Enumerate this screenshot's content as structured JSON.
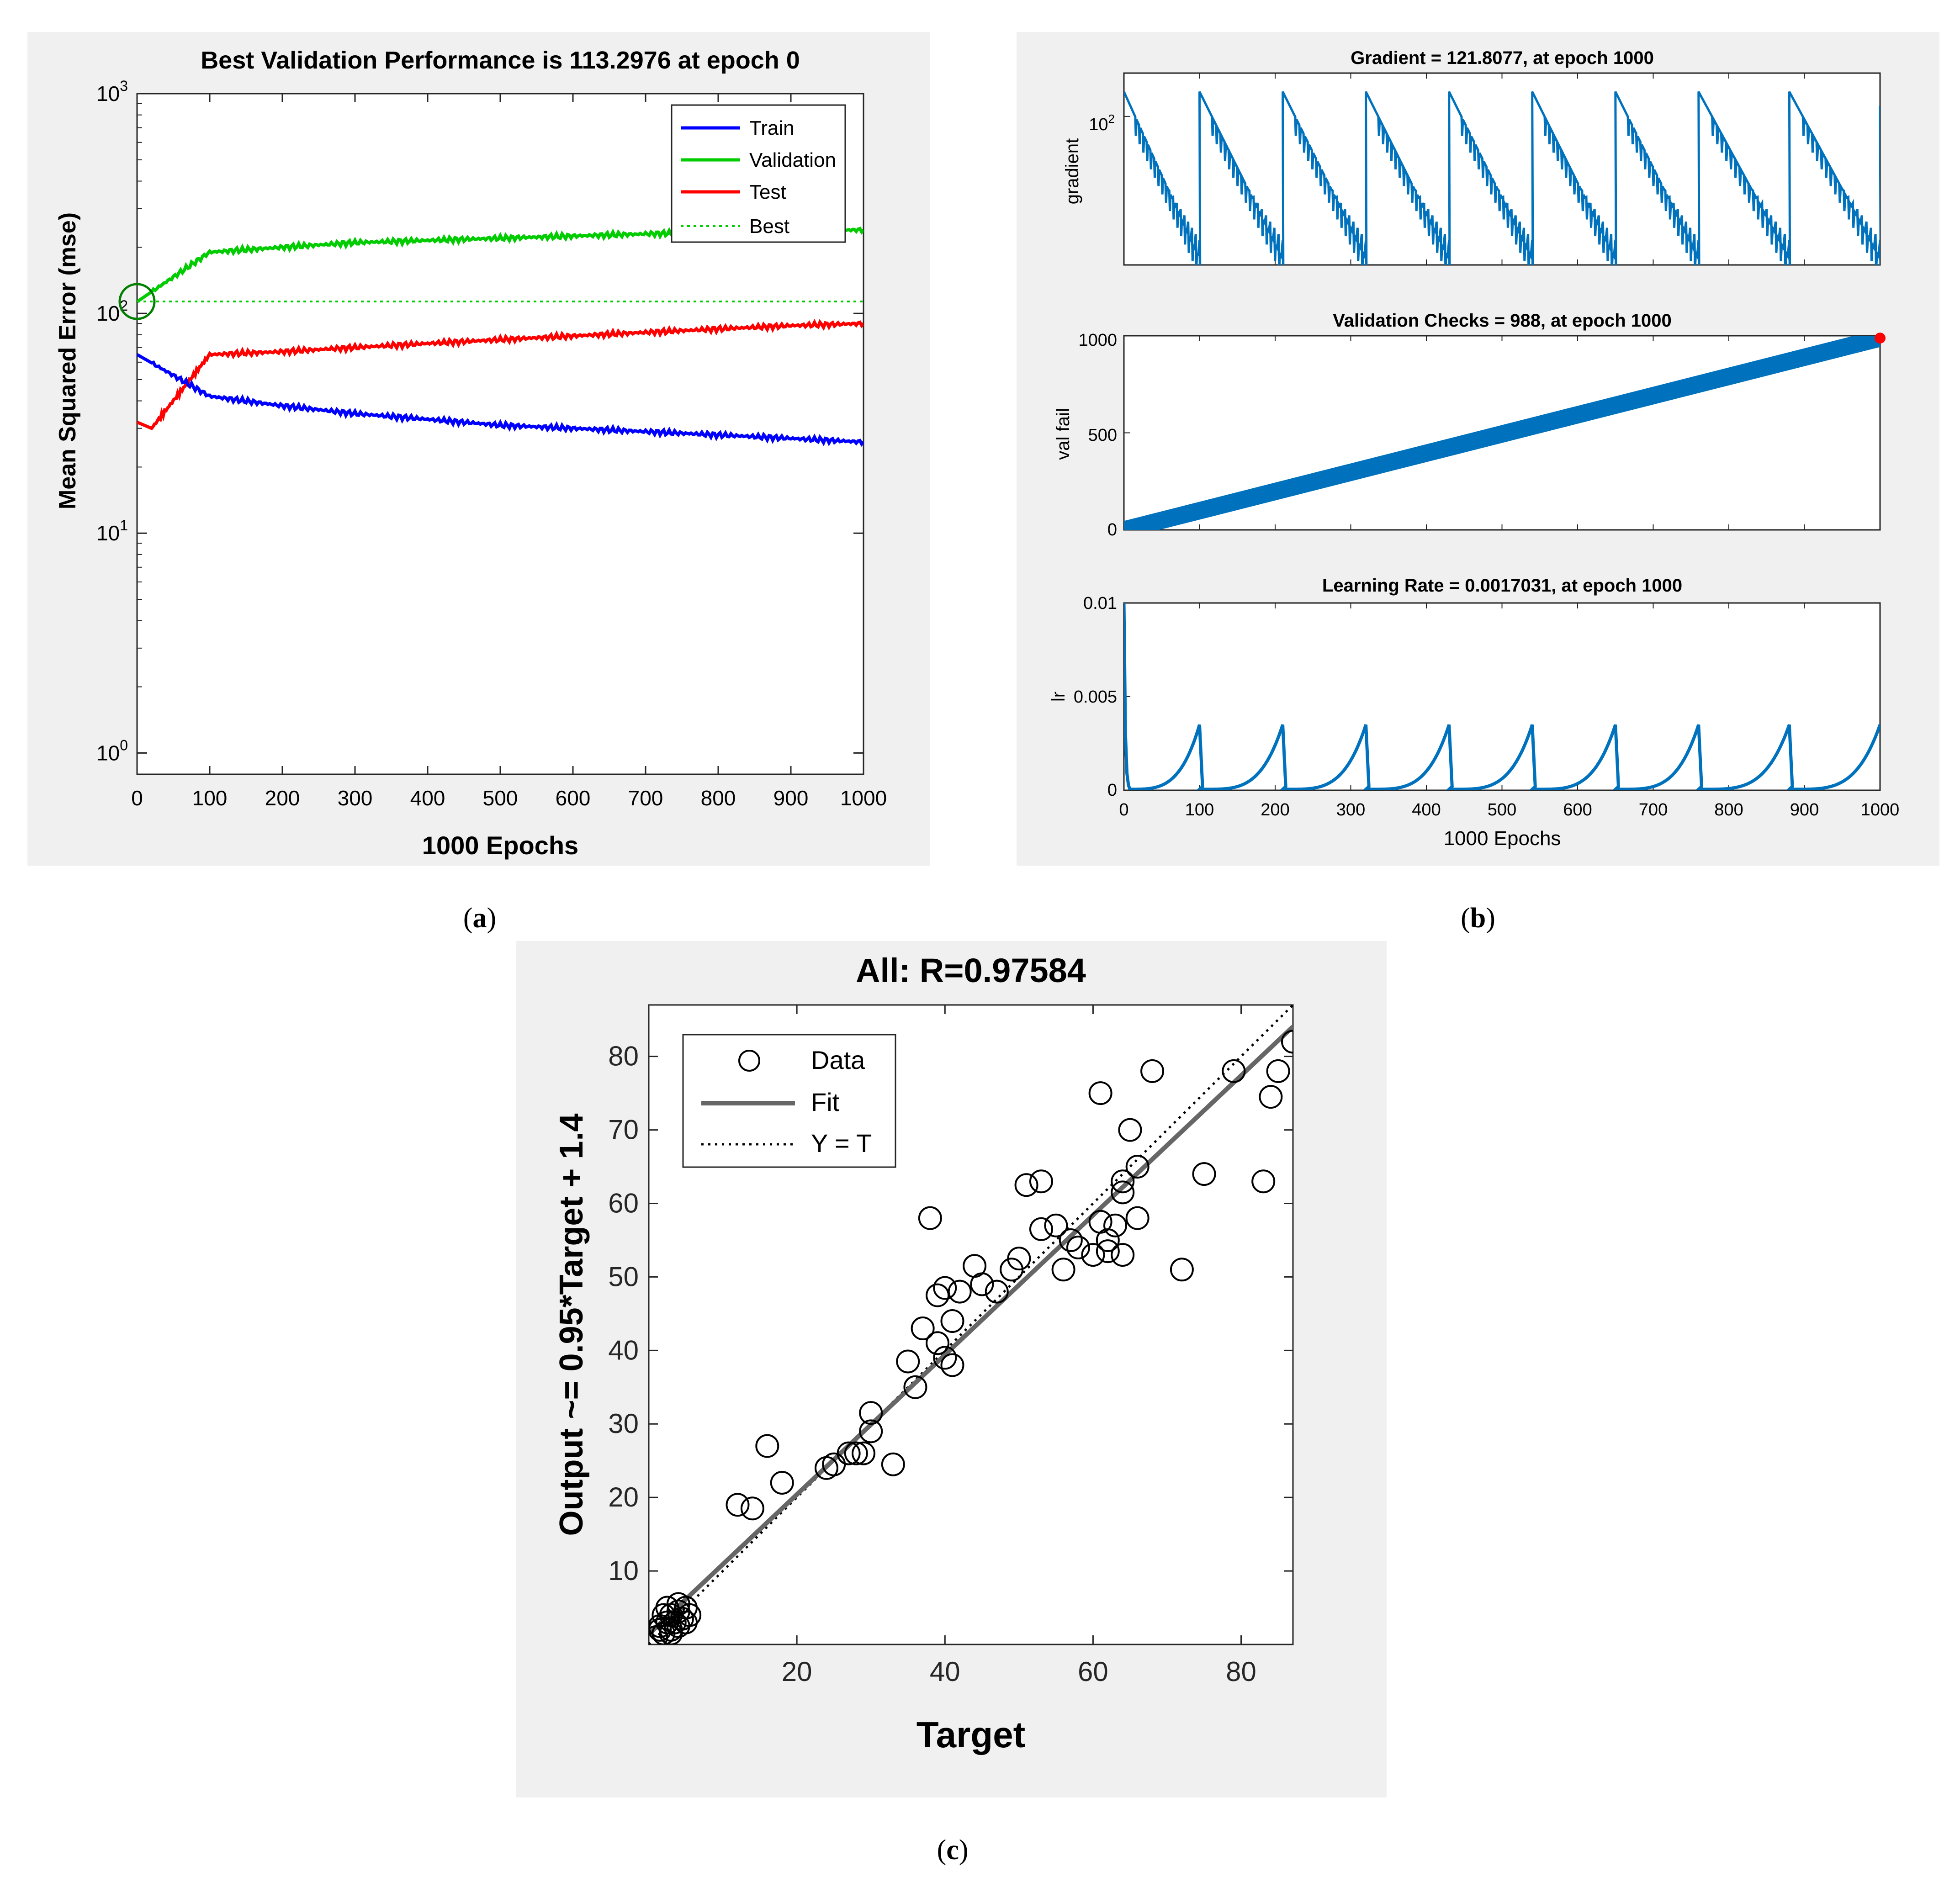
{
  "colors": {
    "panel_bg": "#f0f0f0",
    "axes_bg": "#ffffff",
    "train": "#0000ff",
    "validation": "#00cc00",
    "test": "#ff0000",
    "best_circle": "#008000",
    "matlab_blue": "#0072bd",
    "marker_red": "#ff0000",
    "fit_gray": "#666666"
  },
  "captions": {
    "a": {
      "open": "(",
      "letter": "a",
      "close": ")"
    },
    "b": {
      "open": "(",
      "letter": "b",
      "close": ")"
    },
    "c": {
      "open": "(",
      "letter": "c",
      "close": ")"
    }
  },
  "chart_data": [
    {
      "id": "a",
      "type": "line",
      "title": "Best Validation Performance is 113.2976 at epoch 0",
      "xlabel": "1000 Epochs",
      "ylabel": "Mean Squared Error  (mse)",
      "xlim": [
        0,
        1000
      ],
      "ylim": [
        0.8,
        1000
      ],
      "yscale": "log",
      "x_ticks": [
        0,
        100,
        200,
        300,
        400,
        500,
        600,
        700,
        800,
        900,
        1000
      ],
      "y_ticks": [
        {
          "value": 1,
          "base": "10",
          "exp": "0"
        },
        {
          "value": 10,
          "base": "10",
          "exp": "1"
        },
        {
          "value": 100,
          "base": "10",
          "exp": "2"
        },
        {
          "value": 1000,
          "base": "10",
          "exp": "3"
        }
      ],
      "legend": [
        "Train",
        "Validation",
        "Test",
        "Best"
      ],
      "legend_position": "top-right",
      "best": {
        "epoch": 0,
        "value": 113.2976
      },
      "series": [
        {
          "name": "Train",
          "x": [
            0,
            100,
            200,
            300,
            400,
            500,
            600,
            700,
            800,
            900,
            1000
          ],
          "values": [
            65,
            42,
            38,
            35,
            33,
            31,
            30,
            29,
            28,
            27,
            26
          ]
        },
        {
          "name": "Validation",
          "x": [
            0,
            100,
            200,
            300,
            400,
            500,
            600,
            700,
            800,
            900,
            1000
          ],
          "values": [
            113,
            190,
            200,
            210,
            215,
            220,
            225,
            230,
            235,
            238,
            240
          ]
        },
        {
          "name": "Test",
          "x": [
            0,
            20,
            100,
            200,
            300,
            400,
            500,
            600,
            700,
            800,
            900,
            1000
          ],
          "values": [
            32,
            30,
            65,
            67,
            70,
            73,
            76,
            79,
            82,
            85,
            88,
            90
          ]
        }
      ]
    },
    {
      "id": "b1",
      "type": "line",
      "title": "Gradient = 121.8077, at epoch 1000",
      "ylabel": "gradient",
      "xlim": [
        0,
        1000
      ],
      "yscale": "log",
      "y_ticks": [
        {
          "value": 100,
          "base": "10",
          "exp": "2"
        }
      ],
      "reset_epochs": [
        0,
        100,
        210,
        320,
        430,
        540,
        650,
        760,
        880,
        1000
      ],
      "final_value": 121.8077
    },
    {
      "id": "b2",
      "type": "scatter",
      "title": "Validation Checks = 988, at epoch 1000",
      "ylabel": "val fail",
      "xlim": [
        0,
        1000
      ],
      "ylim": [
        0,
        1000
      ],
      "y_ticks": [
        "0",
        "500",
        "1000"
      ],
      "x": [
        0,
        1000
      ],
      "values": [
        0,
        988
      ]
    },
    {
      "id": "b3",
      "type": "line",
      "title": "Learning Rate = 0.0017031, at epoch 1000",
      "xlabel": "1000 Epochs",
      "ylabel": "lr",
      "xlim": [
        0,
        1000
      ],
      "ylim": [
        0,
        0.01
      ],
      "x_ticks": [
        "0",
        "100",
        "200",
        "300",
        "400",
        "500",
        "600",
        "700",
        "800",
        "900",
        "1000"
      ],
      "y_ticks": [
        "0",
        "0.005",
        "0.01"
      ],
      "peak_value": 0.0035,
      "start_value": 0.01,
      "final_value": 0.0017031,
      "reset_epochs": [
        0,
        100,
        210,
        320,
        430,
        540,
        650,
        760,
        880,
        1000
      ]
    },
    {
      "id": "c",
      "type": "scatter",
      "title": "All: R=0.97584",
      "xlabel": "Target",
      "ylabel": "Output ~= 0.95*Target + 1.4",
      "xlim": [
        0,
        87
      ],
      "ylim": [
        0,
        87
      ],
      "x_ticks": [
        "20",
        "40",
        "60",
        "80"
      ],
      "y_ticks": [
        "10",
        "20",
        "30",
        "40",
        "50",
        "60",
        "70",
        "80"
      ],
      "legend": [
        "Data",
        "Fit",
        "Y = T"
      ],
      "legend_position": "top-left",
      "fit": {
        "slope": 0.95,
        "intercept": 1.4
      },
      "points": [
        [
          1,
          1
        ],
        [
          1.5,
          2
        ],
        [
          2,
          1.5
        ],
        [
          2.5,
          3
        ],
        [
          3,
          2
        ],
        [
          3,
          4
        ],
        [
          3.5,
          3
        ],
        [
          4,
          4.5
        ],
        [
          4,
          2.5
        ],
        [
          4.5,
          3.5
        ],
        [
          5,
          5
        ],
        [
          5,
          3
        ],
        [
          2,
          4
        ],
        [
          1.5,
          2.5
        ],
        [
          3,
          1.5
        ],
        [
          2.5,
          5
        ],
        [
          4,
          5.5
        ],
        [
          5.5,
          4
        ],
        [
          12,
          19
        ],
        [
          14,
          18.5
        ],
        [
          16,
          27
        ],
        [
          18,
          22
        ],
        [
          24,
          24
        ],
        [
          25,
          24.5
        ],
        [
          27,
          26
        ],
        [
          28,
          26
        ],
        [
          29,
          26
        ],
        [
          30,
          29
        ],
        [
          30,
          31.5
        ],
        [
          33,
          24.5
        ],
        [
          35,
          38.5
        ],
        [
          36,
          35
        ],
        [
          37,
          43
        ],
        [
          38,
          58
        ],
        [
          39,
          41
        ],
        [
          39,
          47.5
        ],
        [
          40,
          48.5
        ],
        [
          40,
          39
        ],
        [
          41,
          44
        ],
        [
          41,
          38
        ],
        [
          42,
          48
        ],
        [
          44,
          51.5
        ],
        [
          45,
          49
        ],
        [
          47,
          48
        ],
        [
          49,
          51
        ],
        [
          50,
          52.5
        ],
        [
          51,
          62.5
        ],
        [
          53,
          63
        ],
        [
          53,
          56.5
        ],
        [
          55,
          57
        ],
        [
          56,
          51
        ],
        [
          57,
          55
        ],
        [
          58,
          54
        ],
        [
          60,
          53
        ],
        [
          61,
          57.5
        ],
        [
          61,
          75
        ],
        [
          62,
          53.5
        ],
        [
          62,
          55
        ],
        [
          63,
          57
        ],
        [
          64,
          53
        ],
        [
          64,
          61.5
        ],
        [
          64,
          63
        ],
        [
          65,
          70
        ],
        [
          66,
          65
        ],
        [
          66,
          58
        ],
        [
          68,
          78
        ],
        [
          72,
          51
        ],
        [
          75,
          64
        ],
        [
          79,
          78
        ],
        [
          83,
          63
        ],
        [
          84,
          74.5
        ],
        [
          85,
          78
        ],
        [
          87,
          82
        ]
      ]
    }
  ]
}
